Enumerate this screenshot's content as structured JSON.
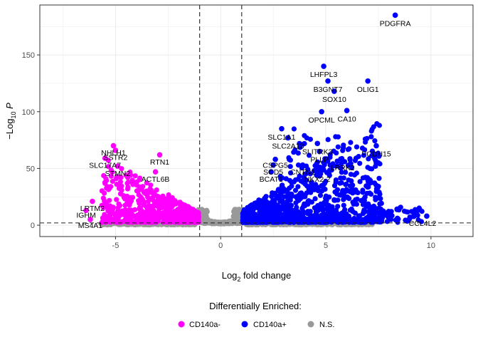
{
  "chart_data": {
    "type": "scatter",
    "xlabel": {
      "base": "Log",
      "sub": "2",
      "rest": " fold change"
    },
    "ylabel": {
      "pre": "−Log",
      "sub": "10",
      "post": " P"
    },
    "xlim": [
      -8.6,
      12
    ],
    "ylim": [
      -10,
      194
    ],
    "xticks": [
      -5,
      0,
      5,
      10
    ],
    "xtick_labels": [
      "-5",
      "0",
      "5",
      "10"
    ],
    "yticks": [
      0,
      50,
      100,
      150
    ],
    "ytick_labels": [
      "0",
      "50",
      "100",
      "150"
    ],
    "grid": true,
    "cutoffs": {
      "fc": [
        -1,
        1
      ],
      "p": 2
    },
    "legend": {
      "title": "Differentially Enriched:",
      "position": "bottom",
      "items": [
        {
          "label": "CD140a-",
          "color": "#ff00ff"
        },
        {
          "label": "CD140a+",
          "color": "#0000ff"
        },
        {
          "label": "N.S.",
          "color": "#999999"
        }
      ]
    },
    "labeled_points": [
      {
        "gene": "PDGFRA",
        "x": 8.3,
        "y": 185,
        "group": "up",
        "lx": 8.3,
        "ly": 178
      },
      {
        "gene": "LHFPL3",
        "x": 4.9,
        "y": 140,
        "group": "up",
        "lx": 4.9,
        "ly": 133
      },
      {
        "gene": "B3GNT7",
        "x": 5.1,
        "y": 127,
        "group": "up",
        "lx": 5.1,
        "ly": 120
      },
      {
        "gene": "OLIG1",
        "x": 7.0,
        "y": 127,
        "group": "up",
        "lx": 7.0,
        "ly": 120
      },
      {
        "gene": "SOX10",
        "x": 5.4,
        "y": 118,
        "group": "up",
        "lx": 5.4,
        "ly": 111
      },
      {
        "gene": "OPCML",
        "x": 4.8,
        "y": 100,
        "group": "up",
        "lx": 4.8,
        "ly": 93
      },
      {
        "gene": "CA10",
        "x": 6.0,
        "y": 101,
        "group": "up",
        "lx": 6.0,
        "ly": 94
      },
      {
        "gene": "SLC1A1",
        "x": 2.9,
        "y": 85,
        "group": "up",
        "lx": 2.9,
        "ly": 78
      },
      {
        "gene": "SLC2A13",
        "x": 3.2,
        "y": 77,
        "group": "up",
        "lx": 3.2,
        "ly": 70
      },
      {
        "gene": "PCDH15",
        "x": 7.4,
        "y": 70,
        "group": "up",
        "lx": 7.4,
        "ly": 63
      },
      {
        "gene": "SLITRK3",
        "x": 4.6,
        "y": 72,
        "group": "up",
        "lx": 4.6,
        "ly": 65
      },
      {
        "gene": "PLLP",
        "x": 4.7,
        "y": 65,
        "group": "up",
        "lx": 4.7,
        "ly": 58
      },
      {
        "gene": "LRRK2",
        "x": 5.8,
        "y": 56,
        "group": "up",
        "lx": 5.8,
        "ly": 51
      },
      {
        "gene": "CSPG5",
        "x": 2.6,
        "y": 58,
        "group": "up",
        "lx": 2.6,
        "ly": 53
      },
      {
        "gene": "SCD5",
        "x": 2.5,
        "y": 53,
        "group": "up",
        "lx": 2.5,
        "ly": 47
      },
      {
        "gene": "CNTN1",
        "x": 3.9,
        "y": 53,
        "group": "up",
        "lx": 3.9,
        "ly": 47
      },
      {
        "gene": "BCAT1",
        "x": 2.4,
        "y": 47,
        "group": "up",
        "lx": 2.4,
        "ly": 41
      },
      {
        "gene": "NKX2-2",
        "x": 4.6,
        "y": 47,
        "group": "up",
        "lx": 4.6,
        "ly": 41
      },
      {
        "gene": "CCL4L2",
        "x": 9.8,
        "y": 8,
        "group": "up",
        "lx": 9.6,
        "ly": 2
      },
      {
        "gene": "NHLH1",
        "x": -5.1,
        "y": 70,
        "group": "down",
        "lx": -5.1,
        "ly": 64
      },
      {
        "gene": "SSTR2",
        "x": -5.0,
        "y": 66,
        "group": "down",
        "lx": -5.0,
        "ly": 60
      },
      {
        "gene": "SLC17A7",
        "x": -5.5,
        "y": 59,
        "group": "down",
        "lx": -5.5,
        "ly": 53
      },
      {
        "gene": "RTN1",
        "x": -2.9,
        "y": 62,
        "group": "down",
        "lx": -2.9,
        "ly": 56
      },
      {
        "gene": "STMN2",
        "x": -4.9,
        "y": 52,
        "group": "down",
        "lx": -4.9,
        "ly": 46
      },
      {
        "gene": "ACTL6B",
        "x": -3.1,
        "y": 47,
        "group": "down",
        "lx": -3.1,
        "ly": 41
      },
      {
        "gene": "LRTM2",
        "x": -6.1,
        "y": 21,
        "group": "down",
        "lx": -6.1,
        "ly": 15
      },
      {
        "gene": "IGHM",
        "x": -6.4,
        "y": 13,
        "group": "down",
        "lx": -6.4,
        "ly": 9
      },
      {
        "gene": "MS4A1",
        "x": -6.2,
        "y": 5,
        "group": "down",
        "lx": -6.2,
        "ly": 0
      }
    ]
  }
}
